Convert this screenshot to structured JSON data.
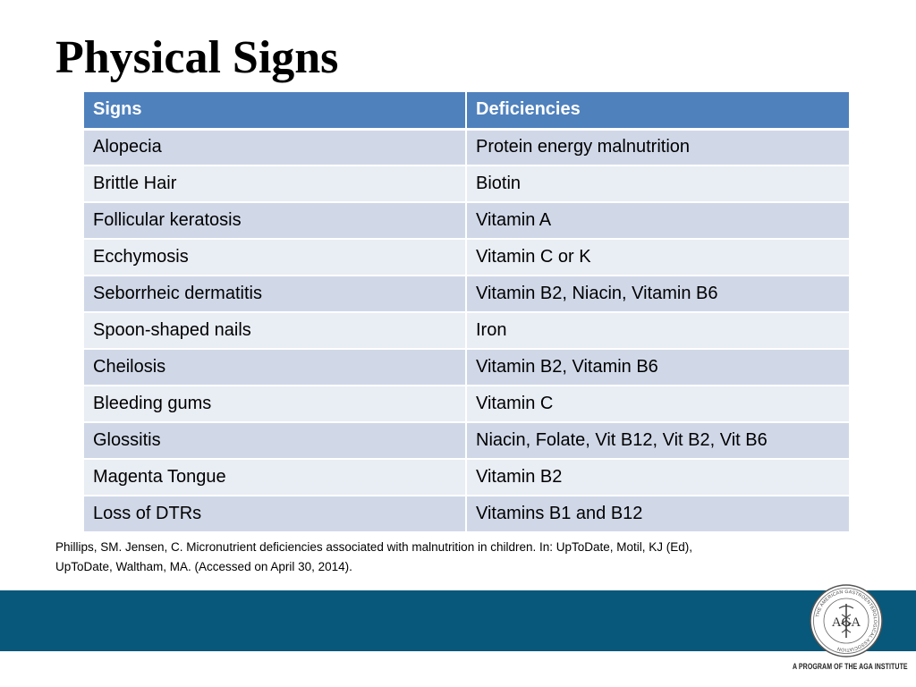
{
  "slide": {
    "title": "Physical Signs"
  },
  "table": {
    "headers": [
      "Signs",
      "Deficiencies"
    ],
    "rows": [
      [
        "Alopecia",
        "Protein energy malnutrition"
      ],
      [
        "Brittle Hair",
        "Biotin"
      ],
      [
        "Follicular keratosis",
        "Vitamin A"
      ],
      [
        "Ecchymosis",
        "Vitamin C or K"
      ],
      [
        "Seborrheic dermatitis",
        "Vitamin B2, Niacin, Vitamin B6"
      ],
      [
        "Spoon-shaped nails",
        "Iron"
      ],
      [
        "Cheilosis",
        "Vitamin B2, Vitamin B6"
      ],
      [
        "Bleeding gums",
        "Vitamin C"
      ],
      [
        "Glossitis",
        "Niacin, Folate, Vit B12, Vit B2, Vit B6"
      ],
      [
        "Magenta Tongue",
        "Vitamin B2"
      ],
      [
        "Loss of DTRs",
        "Vitamins B1 and B12"
      ]
    ],
    "header_color": "#4f81bd",
    "row_color_odd": "#d0d8e8",
    "row_color_even": "#e9edf4"
  },
  "citation": {
    "line1": "Phillips, SM. Jensen, C. Micronutrient deficiencies associated with malnutrition in children. In: UpToDate, Motil, KJ (Ed),",
    "line2": "UpToDate, Waltham, MA. (Accessed on April 30, 2014)."
  },
  "footer": {
    "band_color": "#07587a",
    "logo_text": "AGA",
    "logo_ring_text": "THE AMERICAN GASTROENTEROLOGICAL ASSOCIATION",
    "logo_icon": "caduceus-seal-icon",
    "tagline": "A PROGRAM OF THE AGA INSTITUTE"
  }
}
